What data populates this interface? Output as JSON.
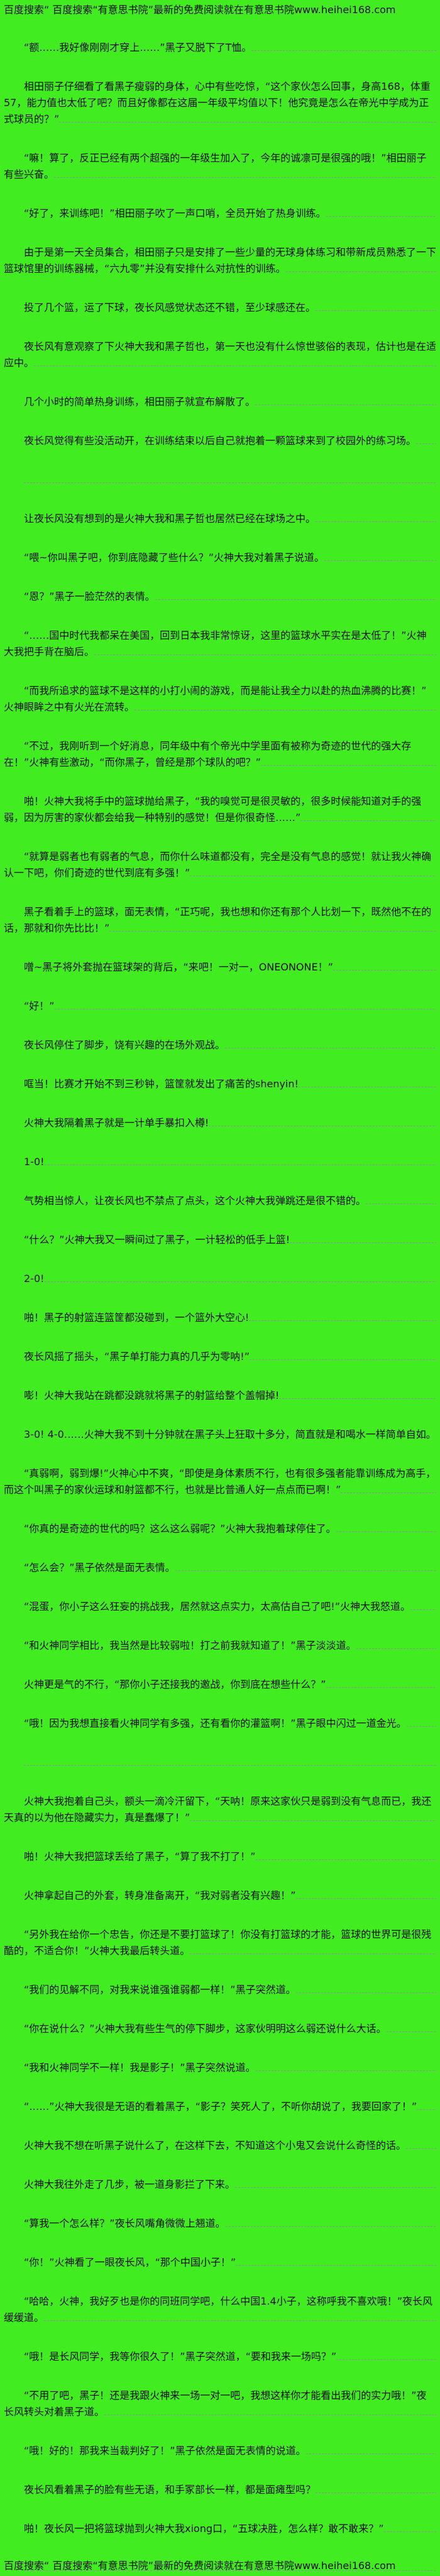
{
  "page": {
    "background_color": "#41ec20",
    "text_color": "#0b0b0b",
    "underline_color": "#9a87ab",
    "header_text": "百度搜索“ 百度搜索“有意思书院”最新的免费阅读就在有意思书院www.heihei168.com",
    "footer_text": "百度搜索“ 百度搜索“有意思书院”最新的免费阅读就在有意思书院www.heihei168.com",
    "site_url": "www.heihei168.com"
  },
  "paragraphs": [
    {
      "text": "“额……我好像刚刚才穿上……”黑子又脱下了T恤。"
    },
    {
      "text": "相田丽子仔细看了看黑子瘦弱的身体，心中有些吃惊，“这个家伙怎么回事，身高168，体重57，能力值也太低了吧？而且好像都在这届一年级平均值以下！他究竟是怎么在帝光中学成为正式球员的？”"
    },
    {
      "text": "“嘛！算了，反正已经有两个超强的一年级生加入了，今年的诚凛可是很强的哦！”相田丽子有些兴奋。"
    },
    {
      "text": "“好了，来训练吧！”相田丽子吹了一声口哨，全员开始了热身训练。"
    },
    {
      "text": "由于是第一天全员集合，相田丽子只是安排了一些少量的无球身体练习和带新成员熟悉了一下篮球馆里的训练器械，“六九零”并没有安排什么对抗性的训练。"
    },
    {
      "text": "投了几个篮，运了下球，夜长风感觉状态还不错，至少球感还在。"
    },
    {
      "text": "夜长风有意观察了下火神大我和黑子哲也，第一天也没有什么惊世骇俗的表现，估计也是在适应中。"
    },
    {
      "text": "几个小时的简单热身训练，相田丽子就宣布解散了。"
    },
    {
      "text": "夜长风觉得有些没活动开，在训练结束以后自己就抱着一颗篮球来到了校园外的练习场。"
    },
    {
      "text": ""
    },
    {
      "text": "让夜长风没有想到的是火神大我和黑子哲也居然已经在球场之中。"
    },
    {
      "text": "“喂~你叫黑子吧，你到底隐藏了些什么？”火神大我对着黑子说道。"
    },
    {
      "text": "“恩？”黑子一脸茫然的表情。"
    },
    {
      "text": "“……国中时代我都呆在美国，回到日本我非常惊讶，这里的篮球水平实在是太低了！”火神大我把手背在脑后。"
    },
    {
      "text": "“而我所追求的篮球不是这样的小打小闹的游戏，而是能让我全力以赴的热血沸腾的比赛！”火神眼眸之中有火光在流转。"
    },
    {
      "text": "“不过，我刚听到一个好消息，同年级中有个帝光中学里面有被称为奇迹的世代的强大存在！”火神有些激动，“而你黑子，曾经是那个球队的吧？”"
    },
    {
      "text": "啪！火神大我将手中的篮球抛给黑子，“我的嗅觉可是很灵敏的，很多时候能知道对手的强弱，因为厉害的家伙都会给我一种特别的感觉！但是你很奇怪……”"
    },
    {
      "text": "“就算是弱者也有弱者的气息，而你什么味道都没有，完全是没有气息的感觉！就让我火神确认一下吧，你们奇迹的世代到底有多强！”"
    },
    {
      "text": "黑子看着手上的篮球，面无表情，“正巧呢，我也想和你还有那个人比划一下，既然他不在的话，那就和你先比比！”"
    },
    {
      "text": "噌~黑子将外套抛在篮球架的背后，“来吧！一对一，ONEONONE！”"
    },
    {
      "text": "“好！”"
    },
    {
      "text": "夜长风停住了脚步，饶有兴趣的在场外观战。"
    },
    {
      "text": "哐当！比赛才开始不到三秒钟，篮筐就发出了痛苦的shenyin!"
    },
    {
      "text": "火神大我隔着黑子就是一计单手暴扣入樽!"
    },
    {
      "text": "1-0!"
    },
    {
      "text": "气势相当惊人，让夜长风也不禁点了点头，这个火神大我弹跳还是很不错的。"
    },
    {
      "text": "“什么？”火神大我又一瞬间过了黑子，一计轻松的低手上篮!"
    },
    {
      "text": "2-0!"
    },
    {
      "text": "啪！黑子的射篮连篮筐都没碰到，一个篮外大空心!"
    },
    {
      "text": "夜长风摇了摇头，“黑子单打能力真的几乎为零呐!”"
    },
    {
      "text": "嘭！火神大我站在跳都没跳就将黑子的射篮给整个盖帽掉!"
    },
    {
      "text": "3-0! 4-0……火神大我不到十分钟就在黑子头上狂取十多分，简直就是和喝水一样简单自如。"
    },
    {
      "text": "“真弱啊，弱到爆!”火神心中不爽，“即使是身体素质不行，也有很多强者能靠训练成为高手，而这个叫黑子的家伙运球和射篮都不行，也就是比普通人好一点点而已啊！”"
    },
    {
      "text": "“你真的是奇迹的世代的吗？这么这么弱呢？”火神大我抱着球停住了。"
    },
    {
      "text": "“怎么会？”黑子依然是面无表情。"
    },
    {
      "text": "“混蛋，你小子这么狂妄的挑战我，居然就这点实力，太高估自己了吧!”火神大我怒道。"
    },
    {
      "text": "“和火神同学相比，我当然是比较弱啦！打之前我就知道了！”黑子淡淡道。"
    },
    {
      "text": "火神更是气的不行，“那你小子还接我的邀战，你到底在想些什么？”"
    },
    {
      "text": "“哦！因为我想直接看火神同学有多强，还有看你的灌篮啊！”黑子眼中闪过一道金光。"
    },
    {
      "text": ""
    },
    {
      "text": "火神大我抱着自己头，额头一滴冷汗留下，“天呐！原来这家伙只是弱到没有气息而已，我还天真的以为他在隐藏实力，真是蠢爆了！”"
    },
    {
      "text": "啪！火神大我把篮球丢给了黑子，“算了我不打了！”"
    },
    {
      "text": "火神拿起自己的外套，转身准备离开，“我对弱者没有兴趣！”"
    },
    {
      "text": "“另外我在给你一个忠告，你还是不要打篮球了！你没有打篮球的才能，篮球的世界可是很残酷的，不适合你！”火神大我最后转头道。"
    },
    {
      "text": "“我们的见解不同，对我来说谁强谁弱都一样！”黑子突然道。"
    },
    {
      "text": "“你在说什么？”火神大我有些生气的停下脚步，这家伙明明这么弱还说什么大话。"
    },
    {
      "text": "“我和火神同学不一样！我是影子！”黑子突然说道。"
    },
    {
      "text": "“……”火神大我很是无语的看着黑子，“影子？笑死人了，不听你胡说了，我要回家了！”"
    },
    {
      "text": "火神大我不想在听黑子说什么了，在这样下去，不知道这个小鬼又会说什么奇怪的话。"
    },
    {
      "text": "火神大我往外走了几步，被一道身影拦了下来。"
    },
    {
      "text": "“算我一个怎么样？”夜长风嘴角微微上翘道。"
    },
    {
      "text": "“你！”火神看了一眼夜长风，“那个中国小子！”"
    },
    {
      "text": "“哈哈，火神，我好歹也是你的同班同学吧，什么中国1.4小子，这称呼我不喜欢哦！”夜长风缓缓道。"
    },
    {
      "text": "“哦！是长风同学，我等你很久了！”黑子突然道，“要和我来一场吗？”"
    },
    {
      "text": "“不用了吧，黑子！还是我跟火神来一场一对一吧，我想这样你才能看出我们的实力哦！”夜长风转头对着黑子道。"
    },
    {
      "text": "“哦！好的！那我来当裁判好了！”黑子依然是面无表情的说道。"
    },
    {
      "text": "夜长风看着黑子的脸有些无语，和手冢部长一样，都是面瘫型吗？"
    },
    {
      "text": "啪！夜长风一把将篮球抛到火神大我xiong口，“五球决胜，怎么样？敢不敢来？”"
    },
    {
      "text": ""
    }
  ]
}
